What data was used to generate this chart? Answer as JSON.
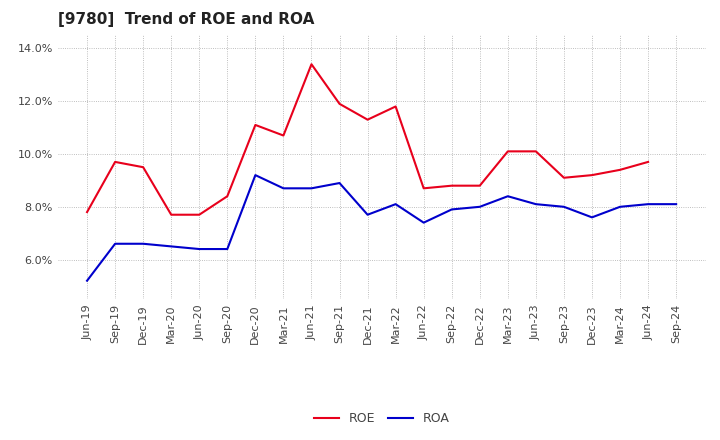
{
  "title": "[9780]  Trend of ROE and ROA",
  "labels": [
    "Jun-19",
    "Sep-19",
    "Dec-19",
    "Mar-20",
    "Jun-20",
    "Sep-20",
    "Dec-20",
    "Mar-21",
    "Jun-21",
    "Sep-21",
    "Dec-21",
    "Mar-22",
    "Jun-22",
    "Sep-22",
    "Dec-22",
    "Mar-23",
    "Jun-23",
    "Sep-23",
    "Dec-23",
    "Mar-24",
    "Jun-24",
    "Sep-24"
  ],
  "ROE": [
    7.8,
    9.7,
    9.5,
    7.7,
    7.7,
    8.4,
    11.1,
    10.7,
    13.4,
    11.9,
    11.3,
    11.8,
    8.7,
    8.8,
    8.8,
    10.1,
    10.1,
    9.1,
    9.2,
    9.4,
    9.7,
    null
  ],
  "ROA": [
    5.2,
    6.6,
    6.6,
    6.5,
    6.4,
    6.4,
    9.2,
    8.7,
    8.7,
    8.9,
    7.7,
    8.1,
    7.4,
    7.9,
    8.0,
    8.4,
    8.1,
    8.0,
    7.6,
    8.0,
    8.1,
    8.1
  ],
  "roe_color": "#e8001c",
  "roa_color": "#0000cc",
  "ylim_min": 4.5,
  "ylim_max": 14.5,
  "yticks": [
    6.0,
    8.0,
    10.0,
    12.0,
    14.0
  ],
  "background_color": "#ffffff",
  "grid_color": "#aaaaaa",
  "title_fontsize": 11,
  "axis_fontsize": 8,
  "legend_fontsize": 9
}
